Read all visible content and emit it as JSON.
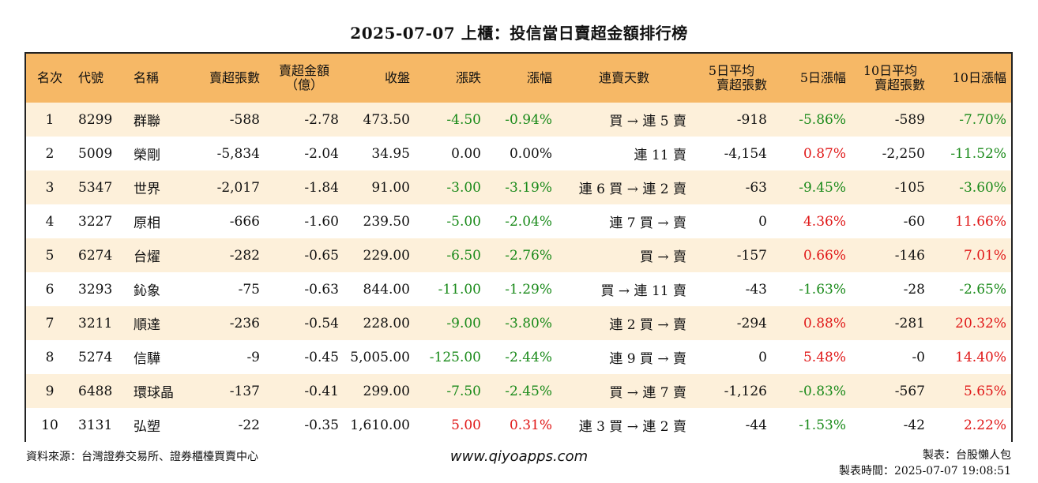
{
  "title": "2025-07-07 上櫃：投信當日賣超金額排行榜",
  "headers": {
    "rank": "名次",
    "code": "代號",
    "name": "名稱",
    "sell_shares": "賣超張數",
    "sell_amount_1": "賣超金額",
    "sell_amount_2": "（億）",
    "close": "收盤",
    "change": "漲跌",
    "change_pct": "漲幅",
    "streak": "連賣天數",
    "avg5_1": "5日平均",
    "avg5_2": "賣超張數",
    "pct5": "5日漲幅",
    "avg10_1": "10日平均",
    "avg10_2": "賣超張數",
    "pct10": "10日漲幅"
  },
  "rows": [
    {
      "rank": "1",
      "code": "8299",
      "name": "群聯",
      "sell_shares": "-588",
      "sell_amount": "-2.78",
      "close": "473.50",
      "change": "-4.50",
      "change_pct": "-0.94%",
      "streak": "買 → 連 5 賣",
      "avg5": "-918",
      "pct5": "-5.86%",
      "avg10": "-589",
      "pct10": "-7.70%"
    },
    {
      "rank": "2",
      "code": "5009",
      "name": "榮剛",
      "sell_shares": "-5,834",
      "sell_amount": "-2.04",
      "close": "34.95",
      "change": "0.00",
      "change_pct": "0.00%",
      "streak": "連 11 賣",
      "avg5": "-4,154",
      "pct5": "0.87%",
      "avg10": "-2,250",
      "pct10": "-11.52%"
    },
    {
      "rank": "3",
      "code": "5347",
      "name": "世界",
      "sell_shares": "-2,017",
      "sell_amount": "-1.84",
      "close": "91.00",
      "change": "-3.00",
      "change_pct": "-3.19%",
      "streak": "連 6 買 → 連 2 賣",
      "avg5": "-63",
      "pct5": "-9.45%",
      "avg10": "-105",
      "pct10": "-3.60%"
    },
    {
      "rank": "4",
      "code": "3227",
      "name": "原相",
      "sell_shares": "-666",
      "sell_amount": "-1.60",
      "close": "239.50",
      "change": "-5.00",
      "change_pct": "-2.04%",
      "streak": "連 7 買 → 賣",
      "avg5": "0",
      "pct5": "4.36%",
      "avg10": "-60",
      "pct10": "11.66%"
    },
    {
      "rank": "5",
      "code": "6274",
      "name": "台燿",
      "sell_shares": "-282",
      "sell_amount": "-0.65",
      "close": "229.00",
      "change": "-6.50",
      "change_pct": "-2.76%",
      "streak": "買 → 賣",
      "avg5": "-157",
      "pct5": "0.66%",
      "avg10": "-146",
      "pct10": "7.01%"
    },
    {
      "rank": "6",
      "code": "3293",
      "name": "鈊象",
      "sell_shares": "-75",
      "sell_amount": "-0.63",
      "close": "844.00",
      "change": "-11.00",
      "change_pct": "-1.29%",
      "streak": "買 → 連 11 賣",
      "avg5": "-43",
      "pct5": "-1.63%",
      "avg10": "-28",
      "pct10": "-2.65%"
    },
    {
      "rank": "7",
      "code": "3211",
      "name": "順達",
      "sell_shares": "-236",
      "sell_amount": "-0.54",
      "close": "228.00",
      "change": "-9.00",
      "change_pct": "-3.80%",
      "streak": "連 2 買 → 賣",
      "avg5": "-294",
      "pct5": "0.88%",
      "avg10": "-281",
      "pct10": "20.32%"
    },
    {
      "rank": "8",
      "code": "5274",
      "name": "信驊",
      "sell_shares": "-9",
      "sell_amount": "-0.45",
      "close": "5,005.00",
      "change": "-125.00",
      "change_pct": "-2.44%",
      "streak": "連 9 買 → 賣",
      "avg5": "0",
      "pct5": "5.48%",
      "avg10": "-0",
      "pct10": "14.40%"
    },
    {
      "rank": "9",
      "code": "6488",
      "name": "環球晶",
      "sell_shares": "-137",
      "sell_amount": "-0.41",
      "close": "299.00",
      "change": "-7.50",
      "change_pct": "-2.45%",
      "streak": "買 → 連 7 賣",
      "avg5": "-1,126",
      "pct5": "-0.83%",
      "avg10": "-567",
      "pct10": "5.65%"
    },
    {
      "rank": "10",
      "code": "3131",
      "name": "弘塑",
      "sell_shares": "-22",
      "sell_amount": "-0.35",
      "close": "1,610.00",
      "change": "5.00",
      "change_pct": "0.31%",
      "streak": "連 3 買 → 連 2 賣",
      "avg5": "-44",
      "pct5": "-1.53%",
      "avg10": "-42",
      "pct10": "2.22%"
    }
  ],
  "footer": {
    "source": "資料來源：台灣證券交易所、證券櫃檯買賣中心",
    "website": "www.qiyoapps.com",
    "author": "製表：台股懶人包",
    "time": "製表時間：2025-07-07 19:08:51"
  },
  "colors": {
    "header_bg": "#f6b866",
    "odd_row_bg": "#fdf0da",
    "negative": "#1a8a1a",
    "positive": "#e01818"
  }
}
